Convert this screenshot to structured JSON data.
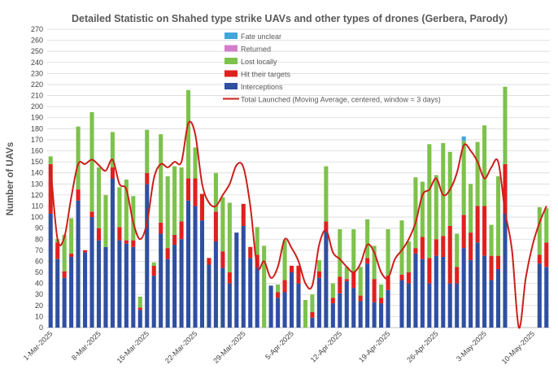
{
  "chart_data": {
    "type": "bar",
    "title": "Detailed Statistic on Shahed type strike UAVs and other types of drones (Gerbera, Parody)",
    "ylabel": "Number of UAVs",
    "xlabel": "",
    "ylim": [
      0,
      270
    ],
    "ytick_step": 10,
    "grid": true,
    "legend_position": "top-center",
    "x_tick_labels": [
      "1-Mar-2025",
      "8-Mar-2025",
      "15-Mar-2025",
      "22-Mar-2025",
      "29-Mar-2025",
      "5-Apr-2025",
      "12-Apr-2025",
      "19-Apr-2025",
      "26-Apr-2025",
      "3-May-2025",
      "10-May-2025"
    ],
    "x_tick_day_index": [
      0,
      7,
      14,
      21,
      28,
      35,
      42,
      49,
      56,
      63,
      70
    ],
    "num_days": 73,
    "series": [
      {
        "name": "Interceptions",
        "color": "#2f4fa2",
        "values": [
          103,
          62,
          45,
          64,
          115,
          68,
          100,
          79,
          73,
          135,
          79,
          76,
          73,
          16,
          130,
          47,
          85,
          62,
          75,
          80,
          115,
          110,
          97,
          57,
          78,
          54,
          40,
          86,
          92,
          63,
          55,
          0,
          38,
          27,
          32,
          50,
          40,
          0,
          9,
          45,
          88,
          22,
          31,
          42,
          36,
          24,
          58,
          23,
          22,
          34,
          0,
          43,
          40,
          67,
          62,
          40,
          65,
          64,
          40,
          40,
          72,
          61,
          77,
          65,
          43,
          53,
          103,
          0,
          0,
          0,
          0,
          58,
          55
        ]
      },
      {
        "name": "Hit their targets",
        "color": "#e0201f",
        "values": [
          45,
          15,
          6,
          3,
          10,
          2,
          5,
          11,
          0,
          10,
          12,
          3,
          6,
          2,
          10,
          9,
          10,
          10,
          9,
          16,
          20,
          25,
          24,
          6,
          27,
          15,
          10,
          0,
          20,
          10,
          11,
          0,
          0,
          5,
          11,
          6,
          16,
          0,
          5,
          6,
          8,
          5,
          15,
          2,
          15,
          5,
          5,
          21,
          5,
          13,
          0,
          5,
          10,
          5,
          20,
          23,
          15,
          19,
          52,
          15,
          30,
          25,
          33,
          45,
          22,
          12,
          45,
          0,
          0,
          0,
          0,
          8,
          22
        ]
      },
      {
        "name": "Lost locally",
        "color": "#7dc24b",
        "values": [
          7,
          3,
          33,
          32,
          57,
          0,
          90,
          55,
          47,
          32,
          36,
          55,
          40,
          10,
          39,
          3,
          80,
          65,
          62,
          49,
          80,
          28,
          0,
          0,
          35,
          49,
          63,
          0,
          0,
          0,
          25,
          74,
          0,
          7,
          36,
          0,
          0,
          25,
          16,
          10,
          50,
          13,
          43,
          11,
          38,
          26,
          35,
          30,
          12,
          42,
          0,
          49,
          28,
          64,
          50,
          103,
          58,
          84,
          67,
          30,
          67,
          44,
          58,
          73,
          28,
          72,
          70,
          0,
          0,
          0,
          0,
          43,
          31
        ]
      },
      {
        "name": "Returned",
        "color": "#d27fcb",
        "values": [
          0,
          0,
          0,
          0,
          0,
          0,
          0,
          0,
          0,
          0,
          0,
          0,
          0,
          0,
          0,
          0,
          0,
          0,
          0,
          0,
          0,
          0,
          0,
          0,
          0,
          0,
          0,
          0,
          0,
          0,
          0,
          0,
          0,
          0,
          0,
          0,
          0,
          0,
          0,
          0,
          0,
          0,
          0,
          0,
          0,
          0,
          0,
          0,
          0,
          0,
          0,
          0,
          0,
          0,
          0,
          0,
          0,
          0,
          0,
          0,
          0,
          0,
          0,
          0,
          0,
          0,
          0,
          0,
          0,
          0,
          0,
          0,
          0
        ]
      },
      {
        "name": "Fate unclear",
        "color": "#41a6dc",
        "values": [
          0,
          0,
          0,
          0,
          0,
          0,
          0,
          0,
          0,
          0,
          0,
          0,
          0,
          0,
          0,
          0,
          0,
          0,
          0,
          0,
          0,
          0,
          0,
          0,
          0,
          0,
          0,
          0,
          0,
          0,
          0,
          0,
          0,
          0,
          0,
          0,
          0,
          0,
          0,
          0,
          0,
          0,
          0,
          0,
          0,
          0,
          0,
          0,
          0,
          0,
          0,
          0,
          0,
          0,
          0,
          0,
          0,
          0,
          0,
          0,
          4,
          0,
          0,
          0,
          0,
          0,
          0,
          0,
          0,
          0,
          0,
          0,
          0
        ]
      }
    ],
    "line": {
      "name": "Total Launched (Moving Average, centered, window = 3 days)",
      "color": "#cc1f1a",
      "values": [
        145,
        80,
        82,
        118,
        148,
        148,
        152,
        147,
        142,
        152,
        130,
        125,
        95,
        80,
        95,
        135,
        148,
        145,
        150,
        150,
        185,
        175,
        130,
        113,
        110,
        120,
        130,
        147,
        145,
        110,
        55,
        60,
        45,
        55,
        80,
        72,
        60,
        40,
        38,
        75,
        88,
        68,
        62,
        55,
        50,
        58,
        75,
        68,
        50,
        45,
        62,
        70,
        80,
        95,
        120,
        125,
        135,
        120,
        125,
        140,
        165,
        160,
        150,
        135,
        145,
        150,
        105,
        70,
        0,
        45,
        75,
        95,
        110
      ]
    },
    "legend_order": [
      "Fate unclear",
      "Returned",
      "Lost locally",
      "Hit their targets",
      "Interceptions",
      "Total Launched (Moving Average, centered, window = 3 days)"
    ]
  }
}
